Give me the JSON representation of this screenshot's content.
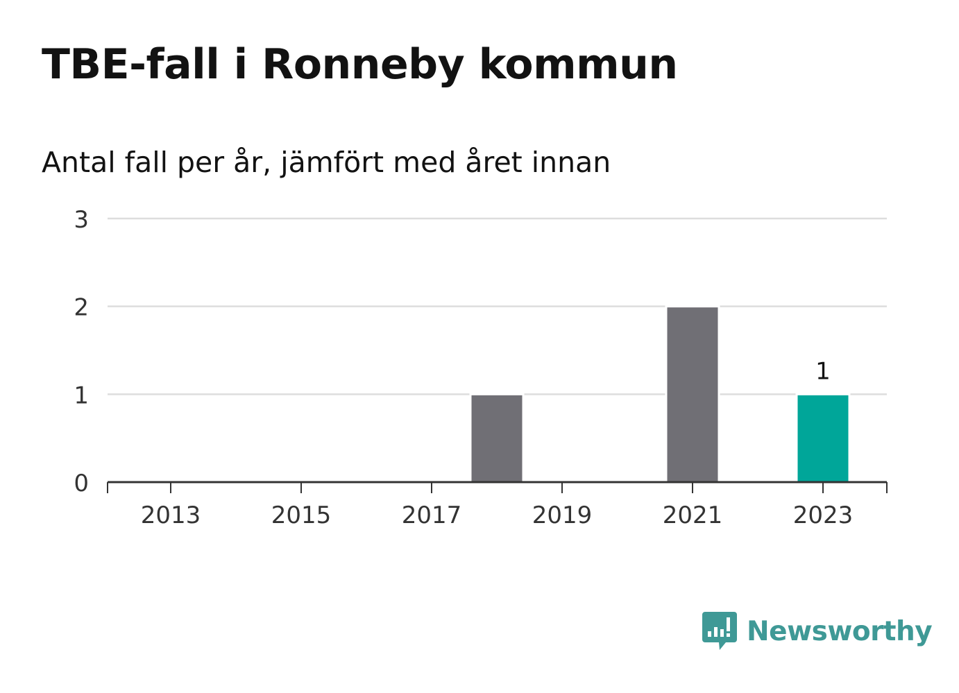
{
  "title": "TBE-fall i Ronneby kommun",
  "subtitle": "Antal fall per år, jämfört med året innan",
  "brand": {
    "name": "Newsworthy",
    "color": "#3f9996",
    "icon": "newsworthy-logo-icon"
  },
  "colors": {
    "bar": "#706f75",
    "highlight": "#00a699",
    "grid": "#dddddd",
    "axis": "#333333",
    "text": "#333333"
  },
  "chart_data": {
    "type": "bar",
    "categories": [
      "2013",
      "2014",
      "2015",
      "2016",
      "2017",
      "2018",
      "2019",
      "2020",
      "2021",
      "2022",
      "2023"
    ],
    "values": [
      0,
      0,
      0,
      0,
      0,
      1,
      0,
      0,
      2,
      0,
      1
    ],
    "highlight_index": 10,
    "data_labels": [
      {
        "category": "2023",
        "label": "1"
      }
    ],
    "x_tick_labels": [
      "2013",
      "2015",
      "2017",
      "2019",
      "2021",
      "2023"
    ],
    "y_ticks": [
      0,
      1,
      2,
      3
    ],
    "ylim": [
      0,
      3
    ],
    "grid": true,
    "title": "TBE-fall i Ronneby kommun",
    "xlabel": "",
    "ylabel": ""
  }
}
